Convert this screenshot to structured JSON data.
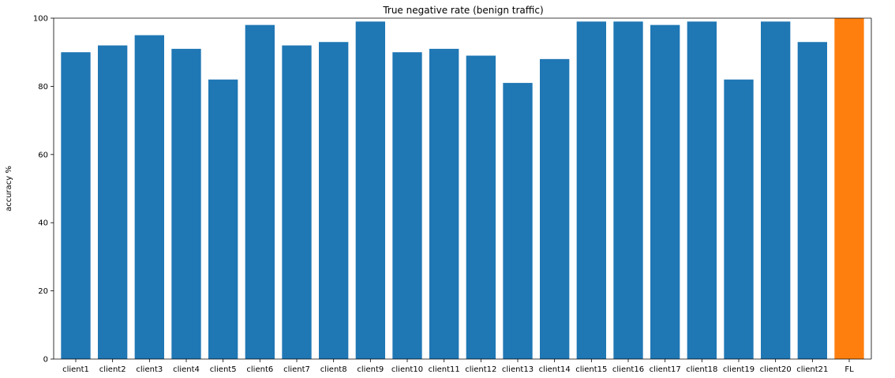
{
  "chart_data": {
    "type": "bar",
    "title": "True negative rate (benign traffic)",
    "xlabel": "",
    "ylabel": "accuracy %",
    "ylim": [
      0,
      100
    ],
    "yticks": [
      0,
      20,
      40,
      60,
      80,
      100
    ],
    "grid": false,
    "categories": [
      "client1",
      "client2",
      "client3",
      "client4",
      "client5",
      "client6",
      "client7",
      "client8",
      "client9",
      "client10",
      "client11",
      "client12",
      "client13",
      "client14",
      "client15",
      "client16",
      "client17",
      "client18",
      "client19",
      "client20",
      "client21",
      "FL"
    ],
    "values": [
      90,
      92,
      95,
      91,
      82,
      98,
      92,
      93,
      99,
      90,
      91,
      89,
      81,
      88,
      99,
      99,
      98,
      99,
      82,
      99,
      93,
      100
    ],
    "bar_colors": [
      "#1f77b4",
      "#1f77b4",
      "#1f77b4",
      "#1f77b4",
      "#1f77b4",
      "#1f77b4",
      "#1f77b4",
      "#1f77b4",
      "#1f77b4",
      "#1f77b4",
      "#1f77b4",
      "#1f77b4",
      "#1f77b4",
      "#1f77b4",
      "#1f77b4",
      "#1f77b4",
      "#1f77b4",
      "#1f77b4",
      "#1f77b4",
      "#1f77b4",
      "#1f77b4",
      "#ff7f0e"
    ]
  }
}
